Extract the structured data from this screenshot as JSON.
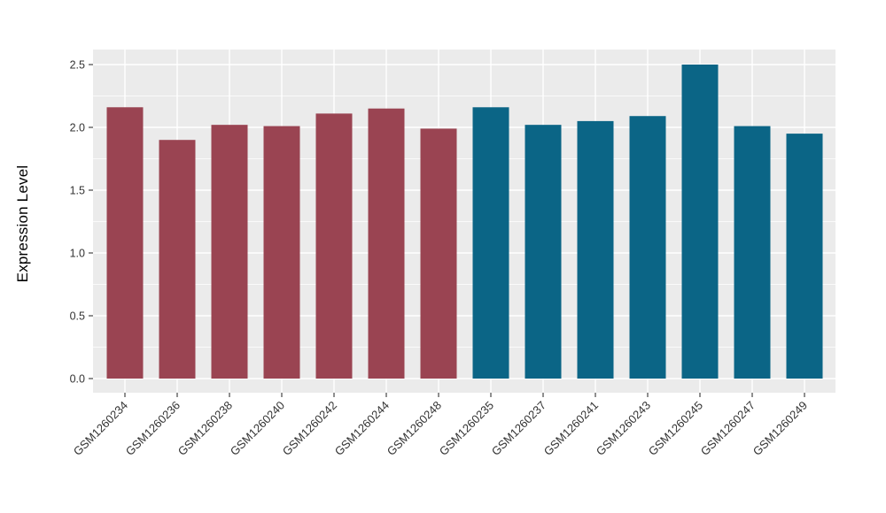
{
  "figure": {
    "background_color": "#FFFFFF",
    "panel_background_color": "#EBEBEB",
    "grid_color": "#FFFFFF",
    "axis_tick_color": "#333333",
    "axis_text_color": "#333333",
    "axis_title_color": "#000000"
  },
  "chart_data": {
    "type": "bar",
    "title": "",
    "xlabel": "",
    "ylabel": "Expression Level",
    "ylim": [
      0,
      2.62
    ],
    "grid": true,
    "legend": "none",
    "bar_color_group1": "#9A4452",
    "bar_color_group2": "#0B6586",
    "yticks": [
      {
        "value": 0.0,
        "label": "0.0"
      },
      {
        "value": 0.5,
        "label": "0.5"
      },
      {
        "value": 1.0,
        "label": "1.0"
      },
      {
        "value": 1.5,
        "label": "1.5"
      },
      {
        "value": 2.0,
        "label": "2.0"
      },
      {
        "value": 2.5,
        "label": "2.5"
      }
    ],
    "minor_yticks": [
      0.25,
      0.75,
      1.25,
      1.75,
      2.25
    ],
    "bars": [
      {
        "label": "GSM1260234",
        "value": 2.16,
        "color": "#9A4452"
      },
      {
        "label": "GSM1260236",
        "value": 1.9,
        "color": "#9A4452"
      },
      {
        "label": "GSM1260238",
        "value": 2.02,
        "color": "#9A4452"
      },
      {
        "label": "GSM1260240",
        "value": 2.01,
        "color": "#9A4452"
      },
      {
        "label": "GSM1260242",
        "value": 2.11,
        "color": "#9A4452"
      },
      {
        "label": "GSM1260244",
        "value": 2.15,
        "color": "#9A4452"
      },
      {
        "label": "GSM1260248",
        "value": 1.99,
        "color": "#9A4452"
      },
      {
        "label": "GSM1260235",
        "value": 2.16,
        "color": "#0B6586"
      },
      {
        "label": "GSM1260237",
        "value": 2.02,
        "color": "#0B6586"
      },
      {
        "label": "GSM1260241",
        "value": 2.05,
        "color": "#0B6586"
      },
      {
        "label": "GSM1260243",
        "value": 2.09,
        "color": "#0B6586"
      },
      {
        "label": "GSM1260245",
        "value": 2.5,
        "color": "#0B6586"
      },
      {
        "label": "GSM1260247",
        "value": 2.01,
        "color": "#0B6586"
      },
      {
        "label": "GSM1260249",
        "value": 1.95,
        "color": "#0B6586"
      }
    ]
  }
}
